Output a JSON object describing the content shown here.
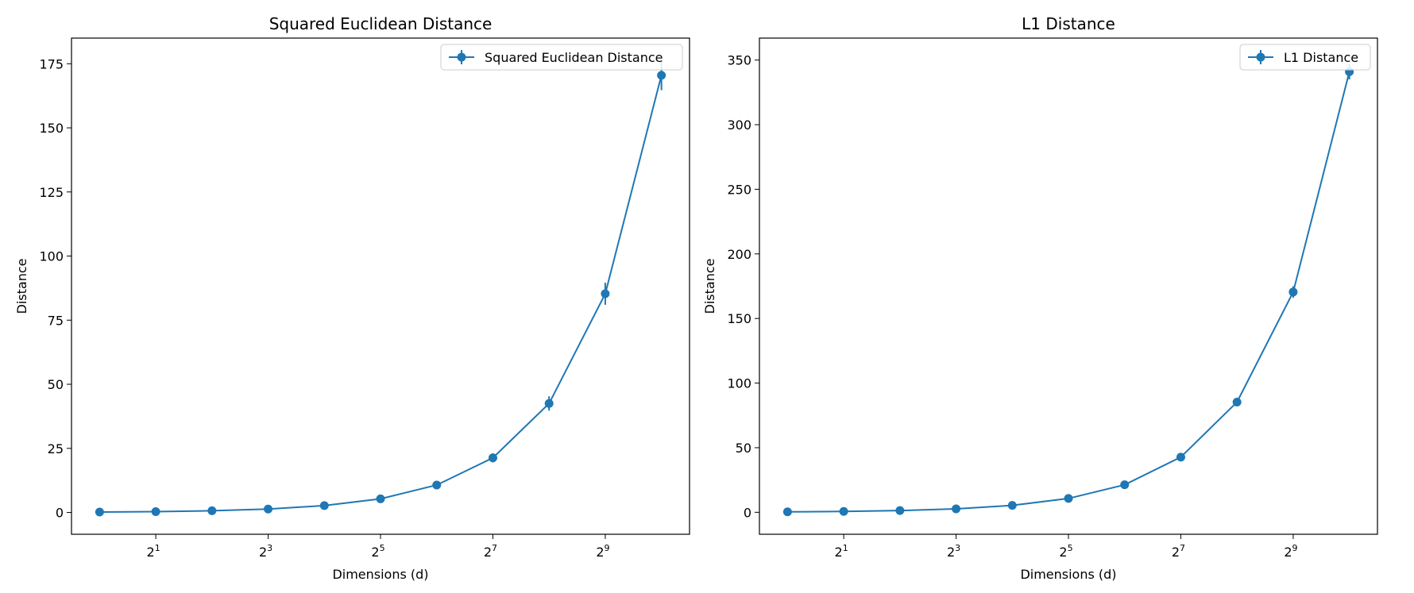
{
  "colors": {
    "series": "#1f77b4",
    "axes": "#000000",
    "legend_border": "#cccccc"
  },
  "chart_data": [
    {
      "type": "line",
      "title": "Squared Euclidean Distance",
      "xlabel": "Dimensions (d)",
      "ylabel": "Distance",
      "xscale": "log2",
      "xlim": [
        0.707,
        1448
      ],
      "ylim": [
        -8.5,
        185
      ],
      "grid": false,
      "legend_position": "upper right",
      "xticks": [
        {
          "value": 2,
          "base": "2",
          "exp": "1"
        },
        {
          "value": 8,
          "base": "2",
          "exp": "3"
        },
        {
          "value": 32,
          "base": "2",
          "exp": "5"
        },
        {
          "value": 128,
          "base": "2",
          "exp": "7"
        },
        {
          "value": 512,
          "base": "2",
          "exp": "9"
        }
      ],
      "yticks": [
        {
          "value": 0,
          "label": "0"
        },
        {
          "value": 25,
          "label": "25"
        },
        {
          "value": 50,
          "label": "50"
        },
        {
          "value": 75,
          "label": "75"
        },
        {
          "value": 100,
          "label": "100"
        },
        {
          "value": 125,
          "label": "125"
        },
        {
          "value": 150,
          "label": "150"
        },
        {
          "value": 175,
          "label": "175"
        }
      ],
      "series": [
        {
          "name": "Squared Euclidean Distance",
          "x": [
            1,
            2,
            4,
            8,
            16,
            32,
            64,
            128,
            256,
            512,
            1024
          ],
          "y": [
            0.17,
            0.33,
            0.67,
            1.33,
            2.67,
            5.33,
            10.7,
            21.3,
            42.5,
            85.3,
            170.5
          ],
          "yerr": [
            0.2,
            0.25,
            0.3,
            0.4,
            0.6,
            0.8,
            1.2,
            1.8,
            2.8,
            4.3,
            5.8
          ]
        }
      ]
    },
    {
      "type": "line",
      "title": "L1 Distance",
      "xlabel": "Dimensions (d)",
      "ylabel": "Distance",
      "xscale": "log2",
      "xlim": [
        0.707,
        1448
      ],
      "ylim": [
        -17,
        367
      ],
      "grid": false,
      "legend_position": "upper right",
      "xticks": [
        {
          "value": 2,
          "base": "2",
          "exp": "1"
        },
        {
          "value": 8,
          "base": "2",
          "exp": "3"
        },
        {
          "value": 32,
          "base": "2",
          "exp": "5"
        },
        {
          "value": 128,
          "base": "2",
          "exp": "7"
        },
        {
          "value": 512,
          "base": "2",
          "exp": "9"
        }
      ],
      "yticks": [
        {
          "value": 0,
          "label": "0"
        },
        {
          "value": 50,
          "label": "50"
        },
        {
          "value": 100,
          "label": "100"
        },
        {
          "value": 150,
          "label": "150"
        },
        {
          "value": 200,
          "label": "200"
        },
        {
          "value": 250,
          "label": "250"
        },
        {
          "value": 300,
          "label": "300"
        },
        {
          "value": 350,
          "label": "350"
        }
      ],
      "series": [
        {
          "name": "L1 Distance",
          "x": [
            1,
            2,
            4,
            8,
            16,
            32,
            64,
            128,
            256,
            512,
            1024
          ],
          "y": [
            0.33,
            0.67,
            1.33,
            2.67,
            5.33,
            10.7,
            21.3,
            42.7,
            85.3,
            170.5,
            341.0
          ],
          "yerr": [
            0.3,
            0.4,
            0.5,
            0.7,
            0.9,
            1.2,
            1.6,
            2.2,
            3.0,
            4.5,
            6.0
          ]
        }
      ]
    }
  ]
}
